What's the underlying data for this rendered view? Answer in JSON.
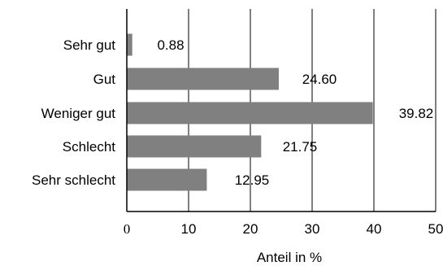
{
  "colors": {
    "bar": "#808080",
    "axis": "#000000",
    "grid": "#000000",
    "text": "#000000",
    "background": "#ffffff"
  },
  "chart_data": {
    "type": "bar",
    "orientation": "horizontal",
    "title": "",
    "xlabel": "Anteil in %",
    "ylabel": "",
    "categories": [
      "Sehr gut",
      "Gut",
      "Weniger gut",
      "Schlecht",
      "Sehr schlecht"
    ],
    "values": [
      0.88,
      24.6,
      39.82,
      21.75,
      12.95
    ],
    "value_labels": [
      "0.88",
      "24.60",
      "39.82",
      "21.75",
      "12.95"
    ],
    "xlim": [
      0,
      50
    ],
    "xticks": [
      0,
      10,
      20,
      30,
      40,
      50
    ],
    "grid": "vertical",
    "legend": "none"
  }
}
